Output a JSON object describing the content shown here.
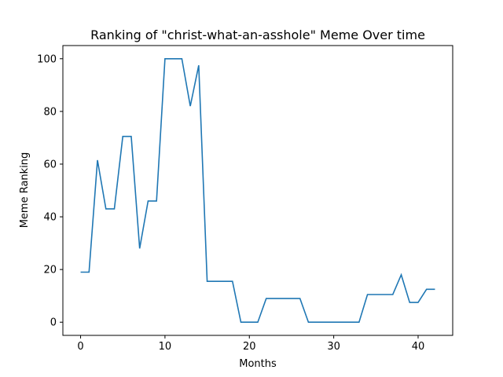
{
  "chart_data": {
    "type": "line",
    "title": "Ranking of \"christ-what-an-asshole\" Meme Over time",
    "xlabel": "Months",
    "ylabel": "Meme Ranking",
    "xlim": [
      -2.1,
      44.1
    ],
    "ylim": [
      -5,
      105
    ],
    "xticks": [
      0,
      10,
      20,
      30,
      40
    ],
    "yticks": [
      0,
      20,
      40,
      60,
      80,
      100
    ],
    "grid": false,
    "line_color": "#1f77b4",
    "series": [
      {
        "x": [
          0,
          1,
          2,
          3,
          4,
          5,
          6,
          7,
          8,
          9,
          10,
          11,
          12,
          13,
          14,
          15,
          16,
          17,
          18,
          19,
          20,
          21,
          22,
          23,
          24,
          25,
          26,
          27,
          28,
          29,
          30,
          31,
          32,
          33,
          34,
          35,
          36,
          37,
          38,
          39,
          40,
          41,
          42
        ],
        "values": [
          19,
          19,
          61.5,
          43,
          43,
          70.5,
          70.5,
          28,
          46,
          46,
          100,
          100,
          100,
          82,
          97.5,
          15.5,
          15.5,
          15.5,
          15.5,
          0,
          0,
          0,
          9,
          9,
          9,
          9,
          9,
          0,
          0,
          0,
          0,
          0,
          0,
          0,
          10.5,
          10.5,
          10.5,
          10.5,
          18,
          7.5,
          7.5,
          12.5,
          12.5
        ]
      }
    ]
  }
}
